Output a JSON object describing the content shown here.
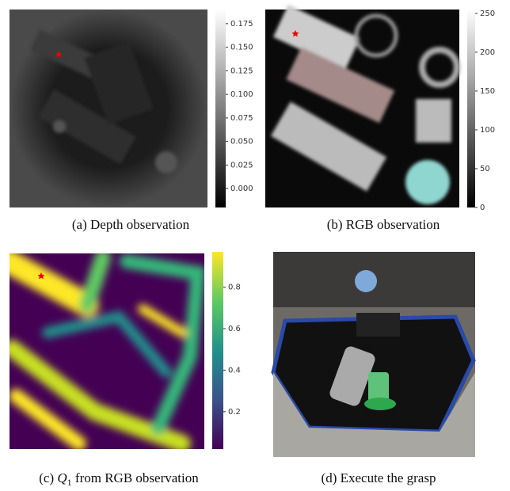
{
  "panels": [
    {
      "label": "(a)",
      "caption": "Depth observation",
      "colorbar": {
        "lim": [
          -0.02,
          0.19
        ],
        "ticks": [
          {
            "value": 0.175,
            "label": "0.175"
          },
          {
            "value": 0.15,
            "label": "0.150"
          },
          {
            "value": 0.125,
            "label": "0.125"
          },
          {
            "value": 0.1,
            "label": "0.100"
          },
          {
            "value": 0.075,
            "label": "0.075"
          },
          {
            "value": 0.05,
            "label": "0.050"
          },
          {
            "value": 0.025,
            "label": "0.025"
          },
          {
            "value": 0,
            "label": "0.000"
          }
        ]
      }
    },
    {
      "label": "(b)",
      "caption": "RGB observation",
      "colorbar": {
        "lim": [
          0,
          255
        ],
        "ticks": [
          250,
          200,
          150,
          100,
          50,
          0
        ]
      }
    },
    {
      "label": "(c)",
      "caption_symbol": "Q",
      "caption_subscript": "1",
      "caption": "from RGB observation",
      "colorbar": {
        "lim": [
          0.02,
          0.97
        ],
        "ticks": [
          0.8,
          0.6,
          0.4,
          0.2
        ]
      }
    },
    {
      "label": "(d)",
      "caption": "Execute the grasp"
    }
  ]
}
